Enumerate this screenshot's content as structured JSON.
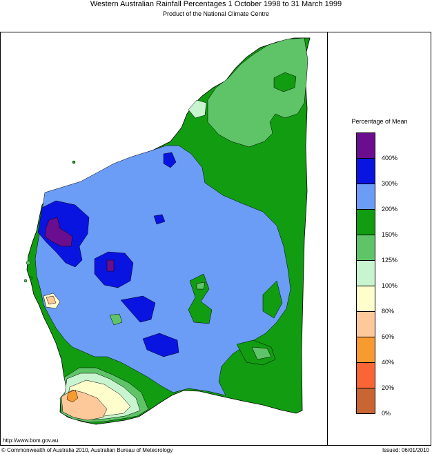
{
  "header": {
    "title": "Western Australian Rainfall Percentages 1 October 1998 to 31 March 1999",
    "subtitle": "Product of the National Climate Centre"
  },
  "legend": {
    "title": "Percentage of Mean",
    "labels": [
      "400%",
      "300%",
      "200%",
      "150%",
      "125%",
      "100%",
      "80%",
      "60%",
      "40%",
      "20%",
      "0%"
    ],
    "colors": [
      "#6a0d8f",
      "#0a14e0",
      "#6b9cf6",
      "#119c11",
      "#5fc468",
      "#c8f5cf",
      "#fefdcc",
      "#fdc99a",
      "#f79a30",
      "#fa6535",
      "#c86533"
    ]
  },
  "footer": {
    "url": "http://www.bom.gov.au",
    "copyright": "© Commonwealth of Australia 2010, Australian Bureau of Meteorology",
    "issued": "Issued: 06/01/2010"
  }
}
